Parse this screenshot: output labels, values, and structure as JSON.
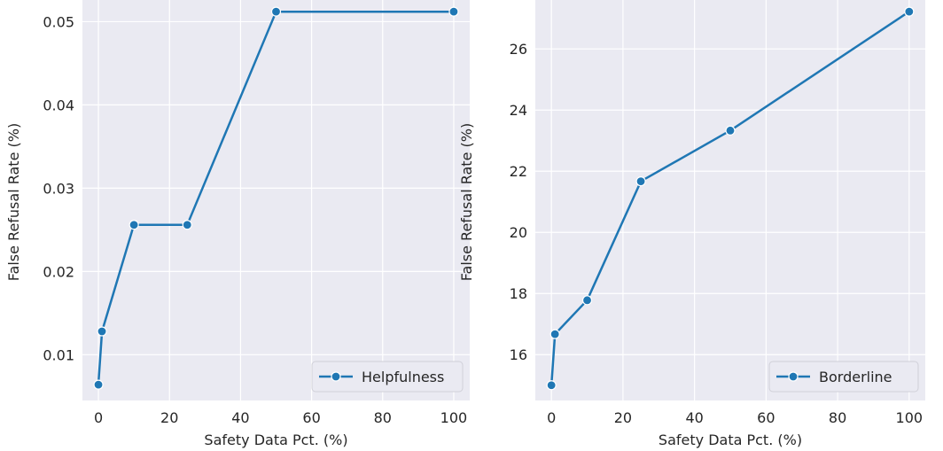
{
  "chart_data": [
    {
      "type": "line",
      "xlabel": "Safety Data Pct. (%)",
      "ylabel": "False Refusal Rate (%)",
      "xlim": [
        -4.5,
        104.5
      ],
      "ylim": [
        0.0045,
        0.0526
      ],
      "xticks": [
        0,
        20,
        40,
        60,
        80,
        100
      ],
      "yticks": [
        0.01,
        0.02,
        0.03,
        0.04,
        0.05
      ],
      "ytick_labels": [
        "0.01",
        "0.02",
        "0.03",
        "0.04",
        "0.05"
      ],
      "grid": true,
      "legend_position": "lower-right",
      "series": [
        {
          "name": "Helpfulness",
          "color": "#1f77b4",
          "x": [
            0,
            1,
            10,
            25,
            50,
            100
          ],
          "y": [
            0.0064,
            0.0128,
            0.0256,
            0.0256,
            0.0512,
            0.0512
          ]
        }
      ]
    },
    {
      "type": "line",
      "xlabel": "Safety Data Pct. (%)",
      "ylabel": "False Refusal Rate (%)",
      "xlim": [
        -4.5,
        104.5
      ],
      "ylim": [
        14.5,
        27.6
      ],
      "xticks": [
        0,
        20,
        40,
        60,
        80,
        100
      ],
      "yticks": [
        16,
        18,
        20,
        22,
        24,
        26
      ],
      "ytick_labels": [
        "16",
        "18",
        "20",
        "22",
        "24",
        "26"
      ],
      "grid": true,
      "legend_position": "lower-right",
      "series": [
        {
          "name": "Borderline",
          "color": "#1f77b4",
          "x": [
            0,
            1,
            10,
            25,
            50,
            100
          ],
          "y": [
            15.0,
            16.67,
            17.78,
            21.67,
            23.33,
            27.22
          ]
        }
      ]
    }
  ]
}
